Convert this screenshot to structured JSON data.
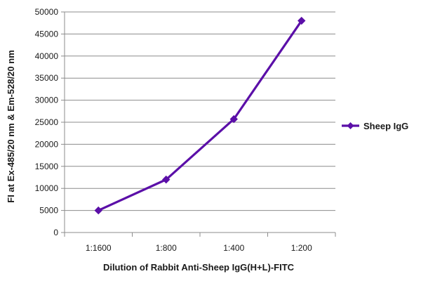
{
  "chart_data": {
    "type": "line",
    "title": "",
    "xlabel": "Dilution of Rabbit Anti-Sheep IgG(H+L)-FITC",
    "ylabel": "FI at Ex-485/20 nm & Em-528/20 nm",
    "categories": [
      "1:1600",
      "1:800",
      "1:400",
      "1:200"
    ],
    "series": [
      {
        "name": "Sheep IgG",
        "values": [
          5000,
          12000,
          25700,
          48000
        ],
        "color": "#5b0fa8"
      }
    ],
    "ylim": [
      0,
      50000
    ],
    "yticks": [
      0,
      5000,
      10000,
      15000,
      20000,
      25000,
      30000,
      35000,
      40000,
      45000,
      50000
    ],
    "grid": true,
    "legend_position": "right",
    "marker": "diamond"
  }
}
